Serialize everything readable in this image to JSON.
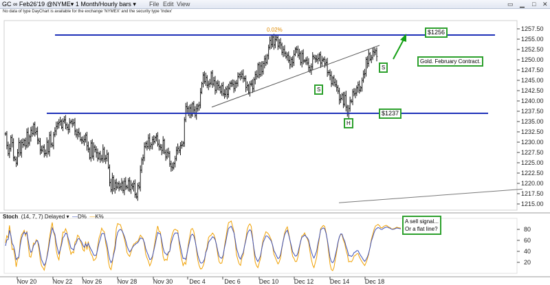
{
  "window": {
    "title": "GC ∞ Feb26'19 @NYME▾  1 Month/Hourly bars ▾",
    "menu": [
      "File",
      "Edit",
      "View"
    ],
    "notice": "No data of type DayChart is available for the exchange 'NYMEX' and the security type 'Index'"
  },
  "stoch_header": {
    "name": "Stoch",
    "params": "(14, 7, 7)  Delayed ▾",
    "d_label": "D%",
    "k_label": "K%"
  },
  "annotations": {
    "price_1256": "$1256",
    "price_1237": "$1237",
    "contract": "Gold. February Contract.",
    "s1": "S",
    "s2": "S",
    "h": "H",
    "sell_signal_l1": "A sell signal...",
    "sell_signal_l2": "Or a flat line?",
    "peak_label": "0.02%"
  },
  "chart_data": [
    {
      "type": "candlestick",
      "title": "",
      "xlabel": "",
      "ylabel": "",
      "ylim": [
        1213.5,
        1259.5
      ],
      "y_ticks": [
        1215.0,
        1217.5,
        1220.0,
        1222.5,
        1225.0,
        1227.5,
        1230.0,
        1232.5,
        1235.0,
        1237.5,
        1240.0,
        1242.5,
        1245.0,
        1247.5,
        1250.0,
        1252.5,
        1255.0,
        1257.5
      ],
      "x_tick_labels": [
        "Nov 20",
        "Nov 22",
        "Nov 26",
        "Nov 28",
        "Nov 30",
        "Dec 4",
        "Dec 6",
        "Dec 10",
        "Dec 12",
        "Dec 14",
        "Dec 18"
      ],
      "bars": 300,
      "close": [
        1232.0,
        1229.2,
        1227.2,
        1228.4,
        1231.1,
        1229.9,
        1226.2,
        1225.8,
        1224.9,
        1227.4,
        1229.9,
        1227.4,
        1229.9,
        1229.4,
        1230.4,
        1229.1,
        1232.4,
        1229.8,
        1231.3,
        1232.9,
        1232.1,
        1234.3,
        1232.3,
        1232.6,
        1230.5,
        1230.2,
        1228.1,
        1228.0,
        1228.8,
        1227.2,
        1227.3,
        1230.0,
        1227.7,
        1231.7,
        1229.5,
        1229.2,
        1231.8,
        1232.7,
        1233.8,
        1234.5,
        1234.8,
        1235.1,
        1233.6,
        1235.1,
        1235.4,
        1234.2,
        1233.6,
        1233.1,
        1234.8,
        1235.0,
        1234.5,
        1234.7,
        1232.7,
        1231.8,
        1232.4,
        1232.0,
        1230.6,
        1230.5,
        1230.2,
        1230.6,
        1231.7,
        1229.1,
        1228.3,
        1226.2,
        1229.8,
        1226.6,
        1228.8,
        1228.2,
        1227.4,
        1226.1,
        1227.2,
        1225.9,
        1226.0,
        1228.3,
        1225.9,
        1226.1,
        1227.1,
        1223.9,
        1220.2,
        1218.4,
        1221.4,
        1218.7,
        1220.1,
        1219.1,
        1219.9,
        1219.0,
        1219.2,
        1220.1,
        1218.3,
        1220.5,
        1219.2,
        1219.0,
        1220.6,
        1218.5,
        1219.6,
        1219.2,
        1219.9,
        1217.3,
        1216.7,
        1219.4,
        1219.1,
        1223.2,
        1225.7,
        1226.2,
        1228.9,
        1229.7,
        1228.9,
        1231.0,
        1229.0,
        1229.4,
        1230.6,
        1230.1,
        1231.1,
        1231.5,
        1229.5,
        1229.0,
        1228.7,
        1228.0,
        1230.4,
        1227.5,
        1226.4,
        1227.5,
        1227.3,
        1224.7,
        1224.0,
        1223.8,
        1224.8,
        1226.0,
        1228.0,
        1228.5,
        1228.0,
        1229.2,
        1229.3,
        1229.8,
        1235.4,
        1238.6,
        1238.2,
        1237.0,
        1238.3,
        1236.6,
        1239.3,
        1237.8,
        1236.5,
        1238.1,
        1238.8,
        1239.0,
        1242.1,
        1244.2,
        1246.3,
        1244.7,
        1245.7,
        1243.8,
        1244.1,
        1244.3,
        1246.8,
        1244.1,
        1244.9,
        1242.6,
        1244.3,
        1243.8,
        1243.3,
        1242.2,
        1243.7,
        1241.7,
        1241.6,
        1242.9,
        1241.6,
        1243.1,
        1244.3,
        1244.3,
        1244.0,
        1243.0,
        1244.3,
        1244.3,
        1245.9,
        1246.4,
        1245.9,
        1246.5,
        1245.5,
        1245.4,
        1243.3,
        1243.7,
        1242.0,
        1244.1,
        1244.1,
        1243.0,
        1245.2,
        1246.4,
        1246.0,
        1248.8,
        1246.4,
        1248.5,
        1247.1,
        1249.1,
        1250.2,
        1249.3,
        1251.0,
        1253.0,
        1254.7,
        1253.7,
        1255.5,
        1253.6,
        1254.9,
        1255.4,
        1253.3,
        1254.1,
        1253.6,
        1251.8,
        1252.5,
        1251.6,
        1250.7,
        1251.1,
        1249.8,
        1248.8,
        1250.1,
        1249.3,
        1251.3,
        1252.6,
        1252.5,
        1251.1,
        1251.5,
        1249.3,
        1251.5,
        1249.7,
        1249.7,
        1249.9,
        1249.2,
        1248.1,
        1247.5,
        1248.3,
        1250.8,
        1250.5,
        1250.2,
        1250.0,
        1250.3,
        1251.2,
        1249.2,
        1249.9,
        1250.1,
        1249.0,
        1249.3,
        1246.9,
        1246.9,
        1246.2,
        1244.2,
        1245.6,
        1244.5,
        1243.9,
        1243.3,
        1242.4,
        1240.3,
        1240.6,
        1241.5,
        1239.2,
        1241.3,
        1238.5,
        1236.9,
        1238.2,
        1240.0,
        1239.9,
        1242.2,
        1241.7,
        1241.9,
        1243.2,
        1243.9,
        1242.6,
        1243.2,
        1245.0,
        1246.5,
        1246.6,
        1250.1,
        1249.1,
        1251.4,
        1250.1,
        1250.5,
        1252.0,
        1251.8,
        1252.2,
        1250.8
      ],
      "price_lines": [
        1256.0,
        1237.0
      ],
      "trendline_from": [
        "Dec 4",
        1238.5
      ],
      "trendline_to": [
        "Dec 18",
        1253.5
      ]
    },
    {
      "type": "line",
      "title": "Stoch (14, 7, 7)",
      "ylim": [
        0,
        100
      ],
      "y_ticks": [
        20,
        40,
        60,
        80
      ],
      "series": [
        {
          "name": "D%",
          "color": "#3b4fb8"
        },
        {
          "name": "K%",
          "color": "#f0a000"
        }
      ],
      "d_values": [
        50.0,
        60.7,
        61.7,
        78.4,
        68.9,
        54.5,
        50.3,
        39.9,
        25.1,
        28.1,
        29.8,
        50.6,
        63.7,
        70.6,
        75.0,
        71.5,
        74.4,
        60.3,
        45.8,
        38.3,
        40.9,
        50.8,
        53.3,
        58.8,
        59.5,
        51.3,
        36.8,
        24.9,
        19.5,
        14.4,
        18.7,
        28.5,
        41.8,
        57.2,
        71.0,
        82.5,
        76.6,
        70.6,
        55.3,
        43.9,
        35.4,
        42.9,
        52.3,
        64.6,
        67.7,
        73.1,
        71.8,
        63.2,
        55.7,
        45.9,
        44.5,
        42.5,
        51.3,
        55.0,
        62.2,
        63.4,
        60.6,
        57.4,
        51.1,
        47.5,
        53.6,
        49.1,
        54.5,
        48.6,
        43.7,
        39.3,
        33.4,
        32.2,
        33.5,
        43.2,
        54.9,
        62.4,
        71.9,
        72.6,
        72.2,
        61.3,
        52.8,
        37.3,
        25.6,
        19.4,
        23.5,
        34.1,
        44.3,
        63.5,
        74.5,
        78.2,
        80.1,
        78.3,
        73.8,
        67.5,
        59.9,
        49.6,
        43.4,
        38.9,
        42.1,
        46.6,
        50.3,
        52.2,
        54.5,
        55.6,
        59.5,
        64.2,
        63.8,
        62.2,
        55.9,
        44.6,
        38.4,
        32.6,
        25.2,
        25.7,
        30.7,
        40.7,
        51.9,
        63.7,
        74.5,
        72.5,
        71.8,
        59.4,
        46.3,
        37.7,
        36.0,
        33.0,
        38.6,
        40.4,
        54.6,
        62.8,
        69.8,
        73.4,
        73.4,
        73.2,
        60.3,
        48.8,
        37.1,
        27.0,
        27.5,
        25.2,
        37.0,
        48.8,
        59.5,
        69.2,
        71.2,
        68.3,
        59.0,
        45.6,
        33.3,
        24.9,
        19.1,
        18.6,
        20.6,
        25.6,
        37.9,
        44.2,
        56.5,
        59.8,
        62.5,
        66.5,
        65.3,
        60.9,
        52.0,
        40.6,
        30.9,
        28.4,
        27.4,
        33.2,
        46.9,
        57.8,
        70.7,
        81.6,
        83.9,
        85.6,
        80.4,
        74.0,
        61.2,
        45.8,
        37.6,
        29.5,
        25.7,
        32.6,
        37.7,
        49.8,
        59.7,
        71.5,
        76.7,
        79.4,
        76.8,
        63.0,
        45.8,
        31.6,
        25.5,
        21.5,
        26.1,
        32.5,
        45.9,
        57.0,
        62.1,
        68.1,
        67.7,
        65.5,
        62.3,
        58.9,
        51.4,
        41.4,
        36.8,
        31.5,
        26.9,
        28.3,
        34.5,
        47.8,
        59.2,
        70.0,
        75.4,
        78.5,
        70.5,
        60.8,
        50.2,
        39.2,
        35.4,
        31.3,
        31.8,
        37.4,
        47.9,
        58.4,
        65.9,
        67.1,
        70.0,
        67.0,
        64.7,
        60.5,
        48.6,
        39.6,
        32.2,
        27.9,
        33.9,
        40.8,
        54.4,
        66.0,
        79.3,
        81.2,
        82.8,
        81.0,
        73.1,
        61.3,
        44.9,
        29.2,
        21.1,
        19.4,
        23.1,
        33.6,
        44.0,
        57.0,
        66.1,
        71.7,
        71.5,
        64.0,
        58.6,
        49.3,
        42.2,
        32.1,
        32.3,
        30.6,
        32.7,
        37.8,
        38.9,
        41.2,
        41.2,
        36.4,
        32.3,
        28.8,
        24.5,
        21.7,
        25.3,
        29.9,
        36.9,
        47.5,
        58.8,
        66.0,
        74.0,
        79.7,
        81.6,
        83.4,
        82.5,
        80.2,
        79.9,
        81.9,
        83.1,
        84.3,
        84.1,
        82.8,
        82.1,
        80.4,
        80.0,
        80.4,
        81.5,
        82.6,
        82.0,
        81.5,
        80.9
      ],
      "k_values": [
        55.5,
        68.4,
        64.3,
        87.2,
        67.5,
        43.3,
        44.6,
        30.8,
        11.9,
        25.6,
        27.6,
        58.4,
        70.2,
        73.8,
        78.2,
        68.2,
        76.9,
        51.3,
        30.8,
        29.2,
        40.4,
        55.2,
        53.6,
        61.1,
        58.6,
        45.0,
        25.2,
        13.9,
        10.4,
        5.7,
        16.7,
        30.7,
        46.9,
        65.2,
        80.6,
        92.6,
        74.8,
        67.0,
        42.2,
        30.3,
        24.6,
        42.7,
        58.1,
        75.3,
        74.4,
        81.1,
        74.8,
        56.4,
        46.2,
        34.8,
        39.2,
        37.2,
        56.3,
        59.2,
        69.5,
        66.9,
        58.8,
        53.3,
        43.0,
        40.4,
        57.9,
        43.1,
        57.9,
        42.8,
        35.6,
        31.4,
        23.2,
        25.0,
        28.9,
        48.4,
        64.2,
        70.9,
        82.3,
        77.6,
        75.7,
        54.6,
        44.4,
        22.3,
        10.5,
        6.6,
        19.1,
        38.1,
        51.0,
        81.7,
        90.7,
        89.1,
        88.6,
        81.2,
        72.2,
        62.7,
        52.0,
        37.5,
        33.5,
        30.8,
        38.7,
        47.1,
        53.2,
        54.5,
        57.4,
        57.8,
        63.2,
        69.4,
        66.6,
        63.5,
        52.6,
        34.5,
        27.9,
        22.3,
        13.5,
        18.9,
        27.6,
        43.1,
        58.8,
        74.6,
        86.1,
        76.1,
        75.0,
        52.6,
        31.0,
        23.3,
        25.6,
        23.7,
        37.6,
        39.8,
        62.8,
        72.0,
        78.5,
        80.4,
        78.8,
        77.7,
        56.4,
        38.5,
        25.1,
        14.1,
        19.9,
        16.5,
        37.2,
        53.6,
        67.6,
        80.1,
        81.6,
        76.0,
        62.3,
        42.4,
        24.3,
        14.1,
        7.9,
        8.4,
        13.6,
        21.4,
        39.9,
        47.8,
        65.0,
        68.1,
        69.4,
        73.4,
        70.5,
        63.3,
        50.5,
        33.8,
        20.9,
        17.9,
        18.9,
        29.5,
        50.3,
        64.3,
        79.5,
        92.3,
        93.4,
        95.3,
        86.2,
        76.9,
        57.7,
        33.9,
        24.6,
        17.1,
        14.5,
        27.7,
        33.6,
        50.3,
        63.1,
        79.6,
        86.9,
        90.0,
        85.6,
        66.0,
        41.1,
        20.5,
        13.8,
        10.3,
        19.1,
        27.5,
        47.4,
        62.2,
        68.6,
        75.6,
        74.1,
        71.2,
        66.4,
        61.2,
        50.4,
        34.8,
        29.0,
        22.9,
        17.1,
        20.7,
        28.6,
        46.4,
        60.3,
        73.3,
        80.3,
        84.5,
        73.7,
        60.4,
        45.9,
        31.0,
        27.2,
        21.5,
        21.6,
        29.7,
        44.1,
        58.4,
        68.4,
        69.6,
        73.6,
        67.2,
        62.9,
        56.6,
        39.1,
        25.6,
        15.1,
        10.4,
        19.5,
        29.1,
        48.0,
        63.5,
        81.2,
        84.4,
        87.1,
        85.5,
        74.9,
        59.3,
        37.6,
        17.1,
        6.7,
        4.9,
        10.7,
        25.7,
        39.3,
        55.4,
        65.9,
        71.3,
        70.3,
        60.5,
        54.2,
        42.5,
        33.6,
        20.8,
        22.0,
        20.7,
        24.4,
        31.2,
        32.8,
        35.2,
        36.0,
        30.0,
        25.0,
        21.0,
        17.3,
        14.1,
        19.8,
        26.3,
        35.1,
        48.0,
        61.9,
        70.7,
        79.9,
        86.0,
        87.5,
        88.9,
        86.8,
        83.2,
        82.7,
        85.1,
        86.5,
        87.5,
        86.2,
        84.1,
        83.3,
        80.9,
        80.8,
        81.4,
        82.6,
        84.0,
        83.1,
        82.6,
        82.1
      ]
    }
  ]
}
